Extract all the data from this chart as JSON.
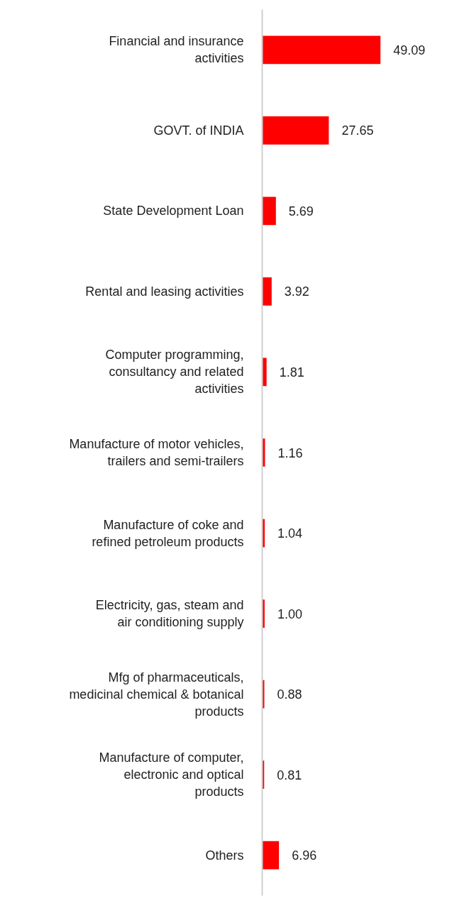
{
  "chart_data": {
    "type": "bar",
    "orientation": "horizontal",
    "categories": [
      "Financial and insurance activities",
      "GOVT. of INDIA",
      "State Development Loan",
      "Rental and leasing activities",
      "Computer programming, consultancy and related activities",
      "Manufacture of motor vehicles, trailers and semi-trailers",
      "Manufacture of coke and refined petroleum products",
      "Electricity, gas, steam and air conditioning supply",
      "Mfg of pharmaceuticals, medicinal chemical & botanical products",
      "Manufacture of computer, electronic and optical products",
      "Others"
    ],
    "values": [
      49.09,
      27.65,
      5.69,
      3.92,
      1.81,
      1.16,
      1.04,
      1.0,
      0.88,
      0.81,
      6.96
    ],
    "value_labels": [
      "49.09",
      "27.65",
      "5.69",
      "3.92",
      "1.81",
      "1.16",
      "1.04",
      "1.00",
      "0.88",
      "0.81",
      "6.96"
    ],
    "color": "#ff0000",
    "grid": false
  }
}
